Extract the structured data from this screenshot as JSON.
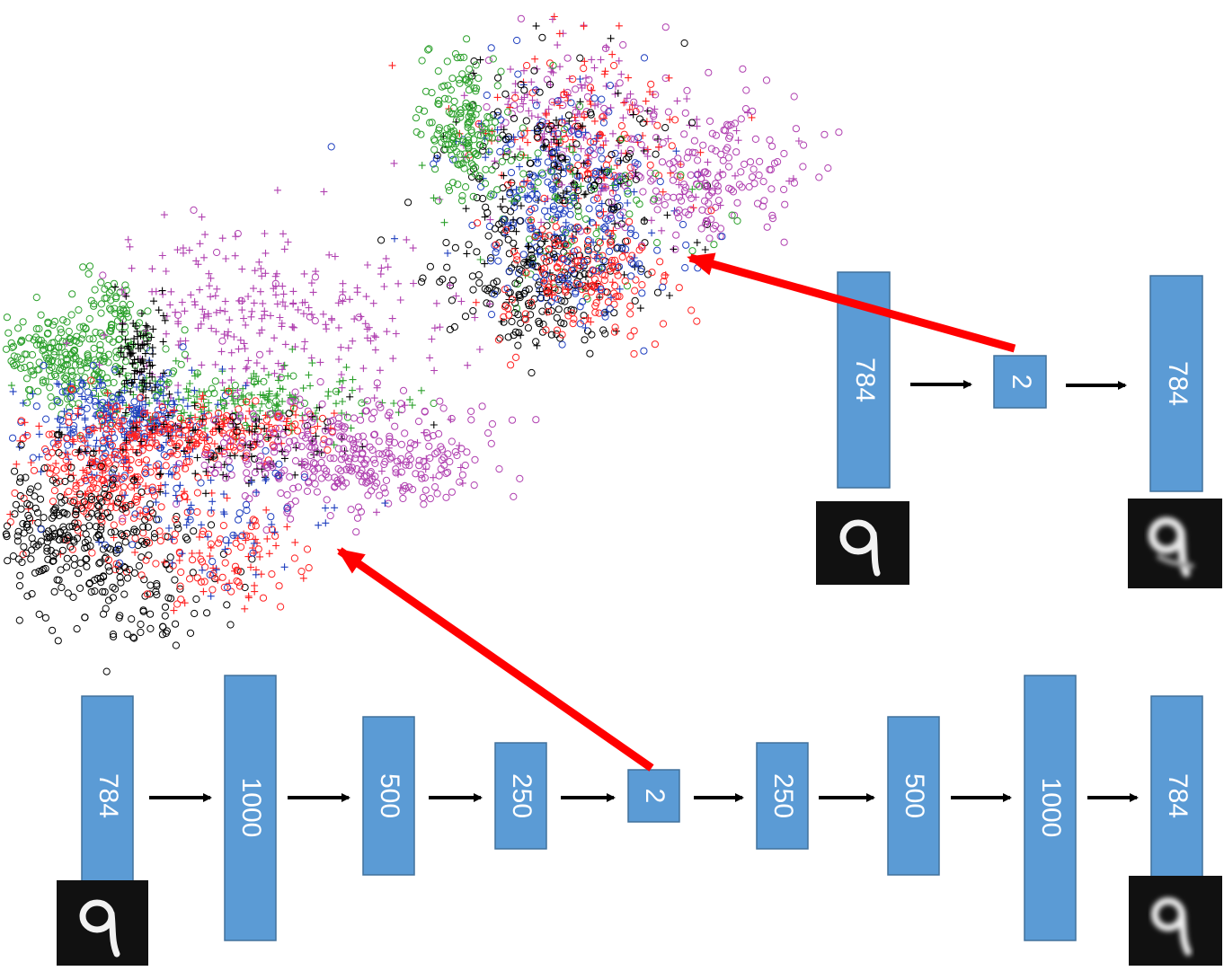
{
  "top_network": {
    "layers": [
      "784",
      "2",
      "784"
    ]
  },
  "bottom_network": {
    "layers": [
      "784",
      "1000",
      "500",
      "250",
      "2",
      "250",
      "500",
      "1000",
      "784"
    ]
  },
  "digit_glyph": "q",
  "colors": {
    "layer_fill": "#5b9bd5",
    "layer_stroke": "#41719c",
    "highlight_arrow": "#ff0000",
    "flow_arrow": "#000000",
    "digit_background": "#111111",
    "digit_stroke": "#f2f2f2"
  },
  "scatter_plots": [
    {
      "markers": [
        "circle",
        "plus"
      ],
      "class_colors": [
        "#2ca02c",
        "#1f3fbf",
        "#ff2020",
        "#000000",
        "#b040b0"
      ]
    },
    {
      "markers": [
        "circle",
        "plus"
      ],
      "class_colors": [
        "#2ca02c",
        "#1f3fbf",
        "#ff2020",
        "#000000",
        "#b040b0"
      ]
    }
  ]
}
